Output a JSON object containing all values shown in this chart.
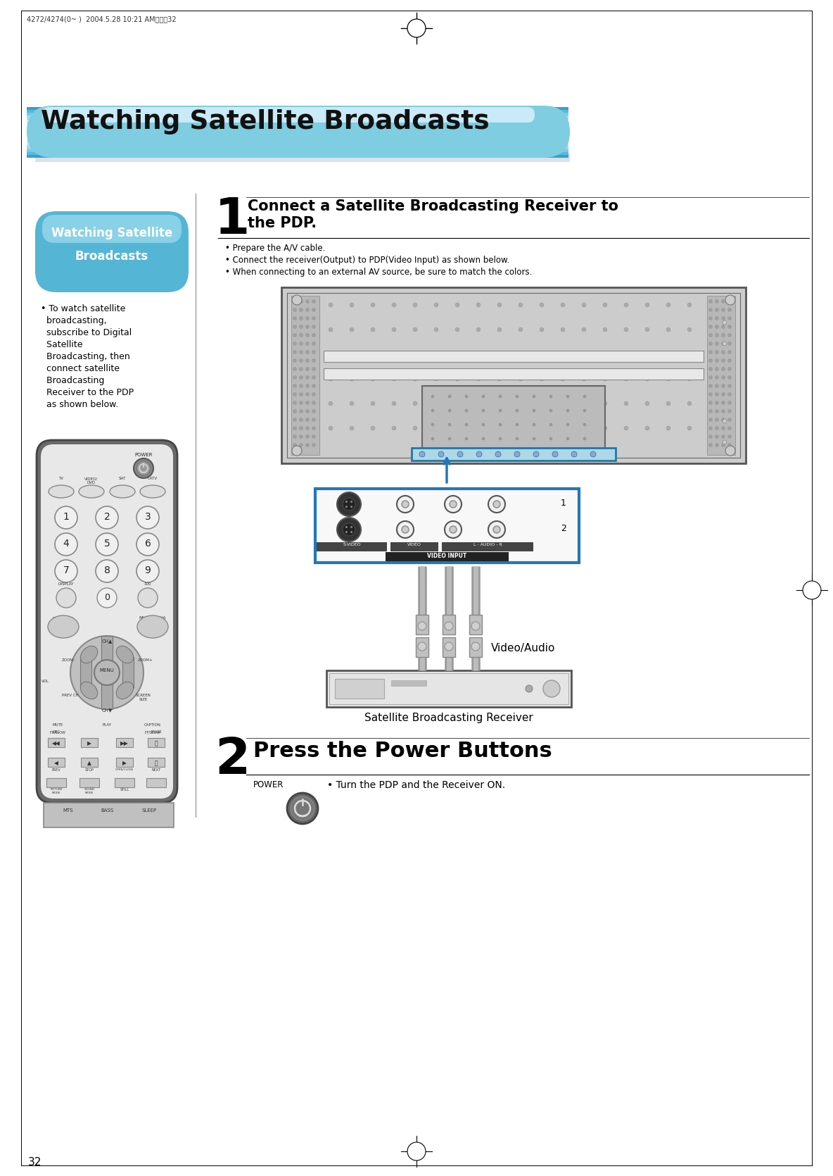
{
  "page_number": "32",
  "header_text": "4272/4274(0~ )  2004.5.28 10:21 AM페이직32",
  "title": "Watching Satellite Broadcasts",
  "sidebar_title_line1": "Watching Satellite",
  "sidebar_title_line2": "Broadcasts",
  "sidebar_text_lines": [
    "• To watch satellite",
    "  broadcasting,",
    "  subscribe to Digital",
    "  Satellite",
    "  Broadcasting, then",
    "  connect satellite",
    "  Broadcasting",
    "  Receiver to the PDP",
    "  as shown below."
  ],
  "section1_num": "1",
  "section1_title_line1": "Connect a Satellite Broadcasting Receiver to",
  "section1_title_line2": "the PDP.",
  "section1_bullets": [
    "• Prepare the A/V cable.",
    "• Connect the receiver(Output) to PDP(Video Input) as shown below.",
    "• When connecting to an external AV source, be sure to match the colors."
  ],
  "video_audio_label": "Video/Audio",
  "sat_receiver_label": "Satellite Broadcasting Receiver",
  "section2_num": "2",
  "section2_title": "Press the Power Buttons",
  "section2_power_label": "POWER",
  "section2_text": "• Turn the PDP and the Receiver ON.",
  "bg_color": "#ffffff"
}
